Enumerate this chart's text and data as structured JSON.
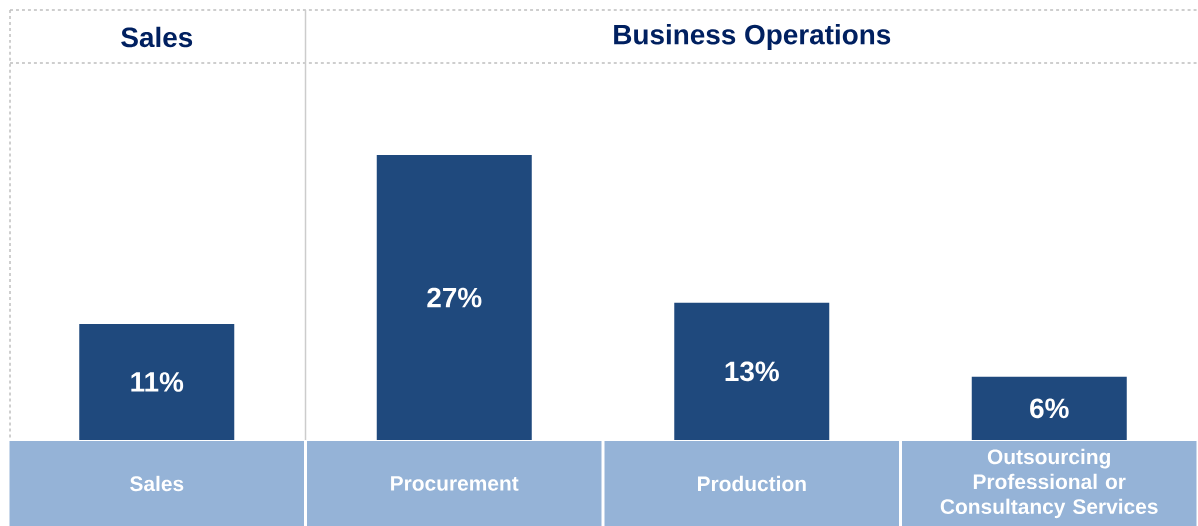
{
  "chart_data": {
    "type": "bar",
    "annotations": [
      "Sales",
      "Business Operations"
    ],
    "categories": [
      "Sales",
      "Procurement",
      "Production",
      "Outsourcing Professional or Consultancy Services"
    ],
    "values": [
      11,
      27,
      13,
      6
    ],
    "value_labels": [
      "11%",
      "27%",
      "13%",
      "6%"
    ],
    "color": "#1f497d"
  }
}
